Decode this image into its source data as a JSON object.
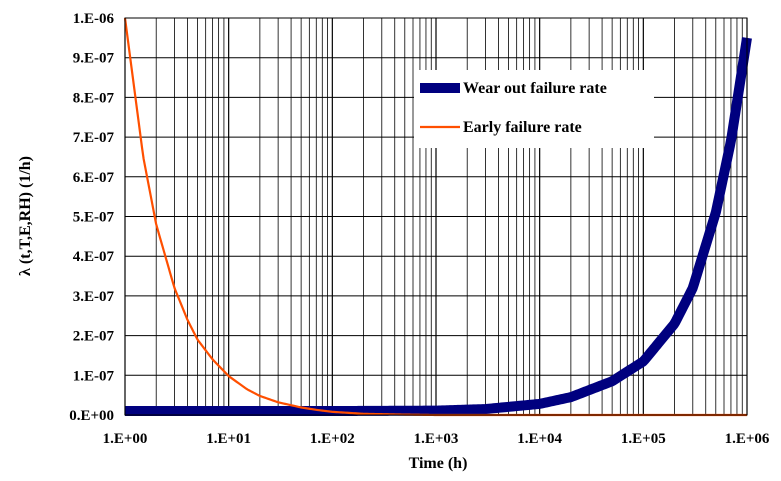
{
  "chart_data": {
    "type": "line",
    "x_scale": "log",
    "xlabel": "Time (h)",
    "ylabel": "λ (t,T,E,RH) (1/h)",
    "xlim": [
      1,
      1000000
    ],
    "ylim": [
      0,
      1e-06
    ],
    "grid": true,
    "legend_position": "top-right",
    "x_tick_labels": [
      "1.E+00",
      "1.E+01",
      "1.E+02",
      "1.E+03",
      "1.E+04",
      "1.E+05",
      "1.E+06"
    ],
    "y_tick_labels": [
      "0.E+00",
      "1.E-07",
      "2.E-07",
      "3.E-07",
      "4.E-07",
      "5.E-07",
      "6.E-07",
      "7.E-07",
      "8.E-07",
      "9.E-07",
      "1.E-06"
    ],
    "series": [
      {
        "name": "Wear out failure rate",
        "color": "#00007f",
        "x": [
          1,
          10,
          100,
          1000,
          3000,
          10000,
          20000,
          50000,
          100000,
          200000,
          300000,
          500000,
          700000,
          1000000
        ],
        "y": [
          1e-08,
          1e-08,
          1e-08,
          1.1e-08,
          1.5e-08,
          2.8e-08,
          4.5e-08,
          8.5e-08,
          1.35e-07,
          2.3e-07,
          3.2e-07,
          5.1e-07,
          6.9e-07,
          9.5e-07
        ]
      },
      {
        "name": "Early failure rate",
        "color": "#ff4f00",
        "x": [
          1,
          1.5,
          2,
          3,
          4,
          5,
          7,
          10,
          15,
          20,
          30,
          50,
          70,
          100,
          200,
          500,
          1000,
          1000000
        ],
        "y": [
          1e-06,
          6.5e-07,
          4.8e-07,
          3.2e-07,
          2.4e-07,
          1.9e-07,
          1.4e-07,
          9.8e-08,
          6.5e-08,
          4.8e-08,
          3.2e-08,
          1.9e-08,
          1.3e-08,
          8e-09,
          3e-09,
          1e-09,
          0,
          0
        ]
      }
    ]
  }
}
